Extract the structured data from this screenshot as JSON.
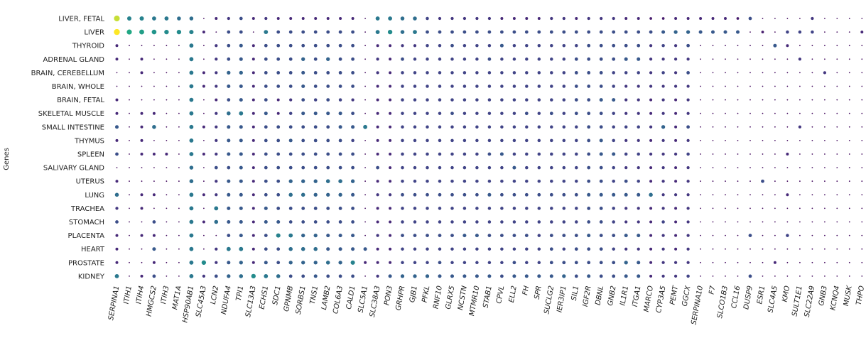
{
  "chart_data": {
    "type": "dotplot",
    "title": "",
    "xlabel": "",
    "ylabel": "Genes",
    "grid": false,
    "legend": "none",
    "colormap": "viridis",
    "value_range": [
      0,
      1
    ],
    "x_categories": [
      "SERPINA1",
      "ITIH1",
      "ITIH4",
      "HMGCS2",
      "ITIH3",
      "MAT1A",
      "HSP90AB1",
      "SLC45A3",
      "LCN2",
      "NDUFA4",
      "TPI1",
      "SLC13A3",
      "ECHS1",
      "SDC1",
      "GPNMB",
      "SORBS1",
      "TNS1",
      "LAMB2",
      "COL6A3",
      "CALD1",
      "SLC5A1",
      "SLC38A3",
      "PON3",
      "GRHPR",
      "GJB1",
      "PFKL",
      "RNF10",
      "GLRX5",
      "NCSTN",
      "MTMR10",
      "STAB1",
      "CPVL",
      "ELL2",
      "FH",
      "SPR",
      "SUCLG2",
      "IER3IP1",
      "SIL1",
      "IGF2R",
      "DBNL",
      "GNB2",
      "IL1R1",
      "ITGA1",
      "MARCO",
      "CYP3A5",
      "PEMT",
      "GGCX",
      "SERPINA10",
      "F7",
      "SLCO1B3",
      "CCL16",
      "DUSP9",
      "ESR1",
      "SLC4A5",
      "KMO",
      "SULT1E1",
      "SLC22A9",
      "GNB3",
      "KCNQ4",
      "MUSK",
      "THPO"
    ],
    "y_categories": [
      "LIVER, FETAL",
      "LIVER",
      "THYROID",
      "ADRENAL GLAND",
      "BRAIN, CEREBELLUM",
      "BRAIN, WHOLE",
      "BRAIN, FETAL",
      "SKELETAL MUSCLE",
      "SMALL INTESTINE",
      "THYMUS",
      "SPLEEN",
      "SALIVARY GLAND",
      "UTERUS",
      "LUNG",
      "TRACHEA",
      "STOMACH",
      "PLACENTA",
      "HEART",
      "PROSTATE",
      "KIDNEY"
    ],
    "values": [
      [
        0.95,
        0.55,
        0.55,
        0.5,
        0.5,
        0.45,
        0.45,
        0.05,
        0.15,
        0.2,
        0.3,
        0.15,
        0.2,
        0.15,
        0.15,
        0.15,
        0.15,
        0.15,
        0.15,
        0.15,
        0.05,
        0.5,
        0.5,
        0.45,
        0.45,
        0.25,
        0.2,
        0.2,
        0.2,
        0.2,
        0.2,
        0.15,
        0.15,
        0.15,
        0.15,
        0.2,
        0.2,
        0.15,
        0.2,
        0.2,
        0.2,
        0.15,
        0.15,
        0.1,
        0.1,
        0.15,
        0.15,
        0.15,
        0.15,
        0.15,
        0.1,
        0.3,
        0.05,
        0.05,
        0.05,
        0.05,
        0.2,
        0.05,
        0.05,
        0.05,
        0.05
      ],
      [
        1.0,
        0.75,
        0.7,
        0.65,
        0.6,
        0.6,
        0.55,
        0.15,
        0.05,
        0.3,
        0.3,
        0.05,
        0.5,
        0.3,
        0.3,
        0.3,
        0.3,
        0.3,
        0.3,
        0.3,
        0.05,
        0.5,
        0.6,
        0.45,
        0.5,
        0.3,
        0.3,
        0.3,
        0.3,
        0.3,
        0.3,
        0.3,
        0.3,
        0.3,
        0.3,
        0.3,
        0.3,
        0.3,
        0.3,
        0.3,
        0.3,
        0.3,
        0.3,
        0.3,
        0.35,
        0.4,
        0.4,
        0.35,
        0.35,
        0.35,
        0.35,
        0.05,
        0.1,
        0.05,
        0.25,
        0.25,
        0.25,
        0.05,
        0.05,
        0.05,
        0.15
      ],
      [
        0.15,
        0.05,
        0.05,
        0.05,
        0.05,
        0.05,
        0.5,
        0.05,
        0.2,
        0.3,
        0.35,
        0.15,
        0.3,
        0.3,
        0.3,
        0.3,
        0.3,
        0.3,
        0.3,
        0.3,
        0.05,
        0.15,
        0.15,
        0.2,
        0.2,
        0.25,
        0.25,
        0.3,
        0.25,
        0.25,
        0.25,
        0.35,
        0.25,
        0.25,
        0.25,
        0.25,
        0.25,
        0.25,
        0.3,
        0.3,
        0.3,
        0.3,
        0.3,
        0.2,
        0.25,
        0.2,
        0.3,
        0.05,
        0.05,
        0.05,
        0.05,
        0.05,
        0.05,
        0.35,
        0.15,
        0.05,
        0.05,
        0.05,
        0.05,
        0.05,
        0.05
      ],
      [
        0.15,
        0.05,
        0.15,
        0.05,
        0.05,
        0.05,
        0.5,
        0.05,
        0.2,
        0.3,
        0.35,
        0.15,
        0.3,
        0.3,
        0.3,
        0.4,
        0.3,
        0.4,
        0.3,
        0.3,
        0.05,
        0.2,
        0.15,
        0.3,
        0.25,
        0.25,
        0.25,
        0.25,
        0.25,
        0.25,
        0.3,
        0.25,
        0.25,
        0.25,
        0.25,
        0.25,
        0.25,
        0.3,
        0.3,
        0.3,
        0.3,
        0.35,
        0.35,
        0.2,
        0.2,
        0.2,
        0.2,
        0.05,
        0.05,
        0.05,
        0.05,
        0.05,
        0.05,
        0.05,
        0.05,
        0.2,
        0.05,
        0.05,
        0.05,
        0.05,
        0.05
      ],
      [
        0.05,
        0.05,
        0.15,
        0.05,
        0.05,
        0.05,
        0.5,
        0.15,
        0.2,
        0.4,
        0.4,
        0.15,
        0.3,
        0.3,
        0.3,
        0.35,
        0.3,
        0.3,
        0.3,
        0.3,
        0.05,
        0.2,
        0.15,
        0.25,
        0.25,
        0.25,
        0.25,
        0.25,
        0.25,
        0.25,
        0.25,
        0.25,
        0.25,
        0.25,
        0.25,
        0.25,
        0.25,
        0.3,
        0.3,
        0.3,
        0.25,
        0.25,
        0.25,
        0.2,
        0.25,
        0.2,
        0.3,
        0.05,
        0.05,
        0.05,
        0.05,
        0.05,
        0.05,
        0.05,
        0.05,
        0.05,
        0.05,
        0.2,
        0.05,
        0.05,
        0.05
      ],
      [
        0.05,
        0.05,
        0.05,
        0.05,
        0.05,
        0.05,
        0.5,
        0.15,
        0.2,
        0.35,
        0.35,
        0.15,
        0.3,
        0.3,
        0.3,
        0.35,
        0.3,
        0.3,
        0.3,
        0.3,
        0.05,
        0.15,
        0.15,
        0.25,
        0.25,
        0.25,
        0.25,
        0.25,
        0.25,
        0.25,
        0.25,
        0.25,
        0.25,
        0.25,
        0.25,
        0.25,
        0.25,
        0.3,
        0.3,
        0.3,
        0.25,
        0.2,
        0.2,
        0.2,
        0.2,
        0.2,
        0.2,
        0.05,
        0.05,
        0.05,
        0.05,
        0.05,
        0.05,
        0.05,
        0.05,
        0.05,
        0.05,
        0.05,
        0.05,
        0.05,
        0.05
      ],
      [
        0.15,
        0.05,
        0.05,
        0.05,
        0.05,
        0.05,
        0.5,
        0.05,
        0.15,
        0.3,
        0.35,
        0.15,
        0.3,
        0.15,
        0.2,
        0.3,
        0.25,
        0.3,
        0.25,
        0.2,
        0.05,
        0.15,
        0.15,
        0.25,
        0.25,
        0.25,
        0.25,
        0.25,
        0.25,
        0.25,
        0.25,
        0.25,
        0.25,
        0.25,
        0.25,
        0.25,
        0.25,
        0.3,
        0.3,
        0.35,
        0.35,
        0.2,
        0.2,
        0.15,
        0.2,
        0.15,
        0.2,
        0.05,
        0.05,
        0.05,
        0.05,
        0.05,
        0.05,
        0.05,
        0.05,
        0.05,
        0.05,
        0.05,
        0.05,
        0.05,
        0.05
      ],
      [
        0.15,
        0.05,
        0.15,
        0.15,
        0.05,
        0.05,
        0.5,
        0.05,
        0.2,
        0.45,
        0.5,
        0.15,
        0.35,
        0.15,
        0.25,
        0.35,
        0.35,
        0.35,
        0.35,
        0.3,
        0.05,
        0.15,
        0.15,
        0.25,
        0.25,
        0.25,
        0.25,
        0.3,
        0.25,
        0.25,
        0.25,
        0.25,
        0.25,
        0.3,
        0.25,
        0.3,
        0.25,
        0.3,
        0.3,
        0.3,
        0.25,
        0.2,
        0.2,
        0.15,
        0.2,
        0.15,
        0.2,
        0.05,
        0.05,
        0.05,
        0.05,
        0.05,
        0.05,
        0.05,
        0.05,
        0.05,
        0.05,
        0.05,
        0.05,
        0.05,
        0.05
      ],
      [
        0.35,
        0.05,
        0.15,
        0.45,
        0.05,
        0.05,
        0.5,
        0.15,
        0.2,
        0.35,
        0.35,
        0.15,
        0.3,
        0.3,
        0.3,
        0.3,
        0.3,
        0.3,
        0.35,
        0.35,
        0.5,
        0.15,
        0.15,
        0.25,
        0.25,
        0.25,
        0.25,
        0.25,
        0.25,
        0.25,
        0.25,
        0.25,
        0.25,
        0.25,
        0.25,
        0.25,
        0.25,
        0.25,
        0.3,
        0.3,
        0.25,
        0.25,
        0.25,
        0.2,
        0.4,
        0.15,
        0.3,
        0.05,
        0.05,
        0.05,
        0.05,
        0.05,
        0.05,
        0.05,
        0.05,
        0.2,
        0.05,
        0.05,
        0.05,
        0.05,
        0.05
      ],
      [
        0.15,
        0.05,
        0.15,
        0.05,
        0.05,
        0.05,
        0.5,
        0.05,
        0.2,
        0.35,
        0.35,
        0.15,
        0.3,
        0.3,
        0.35,
        0.3,
        0.3,
        0.3,
        0.3,
        0.25,
        0.05,
        0.15,
        0.15,
        0.25,
        0.25,
        0.25,
        0.25,
        0.25,
        0.25,
        0.25,
        0.25,
        0.25,
        0.25,
        0.25,
        0.25,
        0.25,
        0.25,
        0.25,
        0.3,
        0.35,
        0.25,
        0.2,
        0.2,
        0.15,
        0.2,
        0.15,
        0.2,
        0.05,
        0.05,
        0.05,
        0.05,
        0.05,
        0.05,
        0.05,
        0.05,
        0.05,
        0.05,
        0.05,
        0.05,
        0.05,
        0.05
      ],
      [
        0.3,
        0.05,
        0.15,
        0.15,
        0.15,
        0.05,
        0.5,
        0.15,
        0.2,
        0.35,
        0.35,
        0.15,
        0.3,
        0.3,
        0.3,
        0.3,
        0.3,
        0.3,
        0.3,
        0.3,
        0.05,
        0.15,
        0.15,
        0.25,
        0.25,
        0.25,
        0.25,
        0.25,
        0.25,
        0.25,
        0.3,
        0.35,
        0.25,
        0.25,
        0.25,
        0.25,
        0.25,
        0.25,
        0.3,
        0.35,
        0.35,
        0.25,
        0.25,
        0.2,
        0.2,
        0.2,
        0.25,
        0.05,
        0.05,
        0.05,
        0.05,
        0.05,
        0.05,
        0.05,
        0.15,
        0.05,
        0.05,
        0.05,
        0.05,
        0.05,
        0.05
      ],
      [
        0.05,
        0.05,
        0.05,
        0.05,
        0.05,
        0.05,
        0.45,
        0.05,
        0.3,
        0.3,
        0.35,
        0.15,
        0.3,
        0.3,
        0.3,
        0.3,
        0.3,
        0.3,
        0.3,
        0.3,
        0.05,
        0.3,
        0.15,
        0.25,
        0.25,
        0.25,
        0.25,
        0.25,
        0.25,
        0.25,
        0.25,
        0.25,
        0.35,
        0.25,
        0.25,
        0.25,
        0.25,
        0.25,
        0.3,
        0.3,
        0.25,
        0.2,
        0.2,
        0.15,
        0.2,
        0.15,
        0.2,
        0.05,
        0.05,
        0.05,
        0.05,
        0.05,
        0.05,
        0.05,
        0.05,
        0.05,
        0.05,
        0.05,
        0.05,
        0.05,
        0.05
      ],
      [
        0.15,
        0.05,
        0.05,
        0.05,
        0.05,
        0.05,
        0.45,
        0.05,
        0.2,
        0.35,
        0.35,
        0.15,
        0.3,
        0.3,
        0.4,
        0.4,
        0.4,
        0.45,
        0.45,
        0.4,
        0.05,
        0.15,
        0.15,
        0.25,
        0.25,
        0.25,
        0.25,
        0.25,
        0.25,
        0.25,
        0.25,
        0.25,
        0.25,
        0.25,
        0.25,
        0.25,
        0.25,
        0.25,
        0.3,
        0.3,
        0.25,
        0.3,
        0.25,
        0.15,
        0.2,
        0.15,
        0.2,
        0.05,
        0.05,
        0.05,
        0.05,
        0.05,
        0.3,
        0.05,
        0.05,
        0.05,
        0.05,
        0.05,
        0.05,
        0.05,
        0.05
      ],
      [
        0.45,
        0.05,
        0.15,
        0.15,
        0.05,
        0.05,
        0.5,
        0.15,
        0.2,
        0.35,
        0.35,
        0.15,
        0.3,
        0.3,
        0.45,
        0.45,
        0.4,
        0.4,
        0.4,
        0.35,
        0.05,
        0.2,
        0.2,
        0.3,
        0.3,
        0.3,
        0.3,
        0.3,
        0.3,
        0.3,
        0.35,
        0.3,
        0.3,
        0.3,
        0.3,
        0.3,
        0.3,
        0.3,
        0.35,
        0.35,
        0.35,
        0.35,
        0.35,
        0.45,
        0.2,
        0.2,
        0.2,
        0.05,
        0.05,
        0.05,
        0.05,
        0.05,
        0.05,
        0.05,
        0.15,
        0.05,
        0.05,
        0.05,
        0.05,
        0.05,
        0.05
      ],
      [
        0.2,
        0.05,
        0.15,
        0.05,
        0.05,
        0.05,
        0.5,
        0.05,
        0.5,
        0.35,
        0.35,
        0.15,
        0.35,
        0.3,
        0.3,
        0.3,
        0.3,
        0.3,
        0.3,
        0.3,
        0.05,
        0.15,
        0.15,
        0.25,
        0.25,
        0.25,
        0.25,
        0.25,
        0.25,
        0.25,
        0.25,
        0.25,
        0.25,
        0.25,
        0.25,
        0.25,
        0.25,
        0.25,
        0.3,
        0.3,
        0.25,
        0.2,
        0.2,
        0.15,
        0.2,
        0.15,
        0.2,
        0.05,
        0.05,
        0.05,
        0.05,
        0.05,
        0.05,
        0.05,
        0.05,
        0.05,
        0.05,
        0.05,
        0.05,
        0.05,
        0.05
      ],
      [
        0.3,
        0.05,
        0.05,
        0.3,
        0.05,
        0.05,
        0.5,
        0.15,
        0.45,
        0.35,
        0.35,
        0.15,
        0.35,
        0.35,
        0.3,
        0.3,
        0.3,
        0.3,
        0.3,
        0.3,
        0.05,
        0.15,
        0.15,
        0.25,
        0.25,
        0.25,
        0.25,
        0.25,
        0.25,
        0.25,
        0.25,
        0.25,
        0.25,
        0.25,
        0.25,
        0.25,
        0.25,
        0.25,
        0.3,
        0.3,
        0.25,
        0.2,
        0.2,
        0.15,
        0.25,
        0.15,
        0.2,
        0.05,
        0.05,
        0.05,
        0.05,
        0.05,
        0.05,
        0.05,
        0.05,
        0.05,
        0.05,
        0.05,
        0.05,
        0.05,
        0.05
      ],
      [
        0.15,
        0.05,
        0.15,
        0.15,
        0.05,
        0.05,
        0.5,
        0.05,
        0.05,
        0.3,
        0.35,
        0.15,
        0.3,
        0.55,
        0.5,
        0.4,
        0.4,
        0.35,
        0.35,
        0.35,
        0.05,
        0.2,
        0.15,
        0.3,
        0.3,
        0.3,
        0.3,
        0.3,
        0.35,
        0.35,
        0.3,
        0.3,
        0.3,
        0.3,
        0.25,
        0.3,
        0.3,
        0.3,
        0.35,
        0.3,
        0.3,
        0.35,
        0.35,
        0.15,
        0.2,
        0.15,
        0.2,
        0.05,
        0.05,
        0.05,
        0.05,
        0.3,
        0.05,
        0.05,
        0.25,
        0.05,
        0.05,
        0.05,
        0.05,
        0.05,
        0.05
      ],
      [
        0.15,
        0.05,
        0.05,
        0.35,
        0.05,
        0.05,
        0.5,
        0.05,
        0.2,
        0.5,
        0.5,
        0.15,
        0.3,
        0.3,
        0.45,
        0.45,
        0.45,
        0.35,
        0.35,
        0.35,
        0.35,
        0.15,
        0.15,
        0.25,
        0.25,
        0.25,
        0.25,
        0.25,
        0.25,
        0.25,
        0.25,
        0.25,
        0.25,
        0.25,
        0.25,
        0.3,
        0.25,
        0.3,
        0.3,
        0.3,
        0.25,
        0.2,
        0.2,
        0.15,
        0.2,
        0.15,
        0.2,
        0.05,
        0.05,
        0.05,
        0.05,
        0.05,
        0.05,
        0.05,
        0.05,
        0.05,
        0.05,
        0.05,
        0.05,
        0.05,
        0.05
      ],
      [
        0.15,
        0.05,
        0.05,
        0.15,
        0.05,
        0.05,
        0.5,
        0.6,
        0.2,
        0.35,
        0.4,
        0.15,
        0.35,
        0.3,
        0.4,
        0.4,
        0.4,
        0.45,
        0.4,
        0.55,
        0.15,
        0.15,
        0.15,
        0.25,
        0.25,
        0.25,
        0.3,
        0.25,
        0.25,
        0.25,
        0.25,
        0.25,
        0.3,
        0.25,
        0.25,
        0.3,
        0.3,
        0.3,
        0.3,
        0.3,
        0.3,
        0.4,
        0.35,
        0.15,
        0.2,
        0.2,
        0.2,
        0.05,
        0.05,
        0.05,
        0.05,
        0.05,
        0.05,
        0.15,
        0.05,
        0.05,
        0.05,
        0.05,
        0.05,
        0.05,
        0.05
      ],
      [
        0.5,
        0.05,
        0.15,
        0.3,
        0.05,
        0.05,
        0.5,
        0.2,
        0.3,
        0.4,
        0.45,
        0.6,
        0.5,
        0.45,
        0.3,
        0.3,
        0.35,
        0.3,
        0.3,
        0.3,
        0.05,
        0.2,
        0.35,
        0.4,
        0.4,
        0.4,
        0.35,
        0.35,
        0.35,
        0.35,
        0.35,
        0.3,
        0.35,
        0.35,
        0.35,
        0.35,
        0.4,
        0.3,
        0.35,
        0.3,
        0.3,
        0.35,
        0.35,
        0.15,
        0.2,
        0.2,
        0.25,
        0.05,
        0.05,
        0.05,
        0.05,
        0.3,
        0.05,
        0.05,
        0.05,
        0.05,
        0.05,
        0.05,
        0.05,
        0.05,
        0.05
      ]
    ]
  }
}
